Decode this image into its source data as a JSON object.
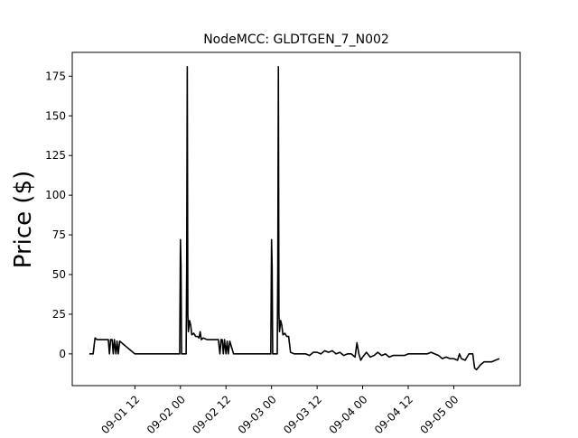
{
  "chart_data": {
    "type": "line",
    "title": "NodeMCC: GLDTGEN_7_N002",
    "xlabel": "",
    "ylabel": "Price ($)",
    "x_tick_labels": [
      "09-01 12",
      "09-02 00",
      "09-02 12",
      "09-03 00",
      "09-03 12",
      "09-04 00",
      "09-04 12",
      "09-05 00"
    ],
    "y_tick_labels": [
      "0",
      "25",
      "50",
      "75",
      "100",
      "125",
      "150",
      "175"
    ],
    "ylim": [
      -20,
      190
    ],
    "grid": false,
    "legend": "none",
    "line_color": "#000000",
    "series": [
      {
        "x": [
          0.0,
          1.0,
          1.5,
          2.0,
          3.0,
          4.5,
          5.0,
          5.3,
          5.6,
          6.0,
          6.3,
          6.6,
          7.0,
          7.3,
          7.6,
          8.0,
          12.0,
          18.0,
          23.8,
          24.0,
          24.15,
          24.3,
          25.5,
          25.65,
          25.8,
          25.95,
          26.1,
          26.4,
          26.7,
          27.0,
          27.5,
          28.0,
          28.5,
          28.9,
          29.2,
          29.5,
          30.0,
          31.0,
          32.0,
          33.0,
          34.0,
          34.4,
          34.7,
          35.0,
          35.3,
          35.6,
          36.0,
          36.3,
          36.6,
          37.0,
          38.0,
          42.0,
          47.8,
          48.0,
          48.15,
          48.3,
          49.5,
          49.65,
          49.8,
          49.95,
          50.1,
          50.4,
          50.7,
          51.0,
          51.5,
          52.0,
          52.5,
          53.0,
          54.0,
          55.0,
          56.0,
          57.0,
          58.0,
          59.0,
          60.0,
          61.0,
          62.0,
          63.0,
          64.0,
          65.0,
          66.0,
          67.0,
          68.0,
          69.0,
          70.0,
          70.5,
          71.0,
          71.5,
          72.0,
          73.0,
          74.0,
          75.0,
          76.0,
          77.0,
          78.0,
          79.0,
          80.0,
          81.0,
          82.0,
          83.0,
          84.0,
          85.0,
          86.0,
          87.0,
          88.0,
          89.0,
          90.0,
          91.0,
          92.0,
          93.0,
          94.0,
          95.0,
          96.0,
          97.0,
          97.5,
          98.0,
          99.0,
          100.0,
          101.0,
          101.5,
          102.0,
          103.0,
          103.5,
          104.0,
          105.0,
          106.0,
          107.0,
          108.0
        ],
        "y": [
          0,
          0,
          10,
          9,
          9,
          9,
          9,
          0,
          9,
          9,
          0,
          9,
          0,
          8,
          0,
          8,
          0,
          0,
          0,
          72,
          55,
          0,
          0,
          55,
          181,
          25,
          14,
          21,
          18,
          12,
          13,
          11,
          11,
          10,
          14,
          9,
          10,
          9,
          9,
          9,
          9,
          0,
          9,
          9,
          0,
          9,
          0,
          8,
          0,
          8,
          0,
          0,
          0,
          72,
          55,
          0,
          0,
          55,
          181,
          25,
          14,
          21,
          18,
          12,
          13,
          11,
          11,
          1,
          0,
          0,
          0,
          0,
          -1,
          1,
          1,
          0,
          2,
          1,
          2,
          0,
          1,
          -1,
          0,
          0,
          -2,
          7,
          0,
          -4,
          -2,
          1,
          -2,
          -1,
          1,
          -1,
          0,
          -2,
          -1,
          -1,
          -1,
          -1,
          0,
          0,
          0,
          0,
          0,
          0,
          1,
          0,
          -1,
          -3,
          -2,
          -3,
          -3,
          -4,
          0,
          -3,
          -4,
          0,
          0,
          -9,
          -10,
          -7,
          -6,
          -5,
          -5,
          -5,
          -4,
          -3
        ]
      }
    ],
    "x_tick_positions": [
      12,
      24,
      36,
      48,
      60,
      72,
      84,
      96
    ],
    "y_tick_values": [
      0,
      25,
      50,
      75,
      100,
      125,
      150,
      175
    ],
    "xlim": [
      -4.5,
      113.5
    ]
  }
}
